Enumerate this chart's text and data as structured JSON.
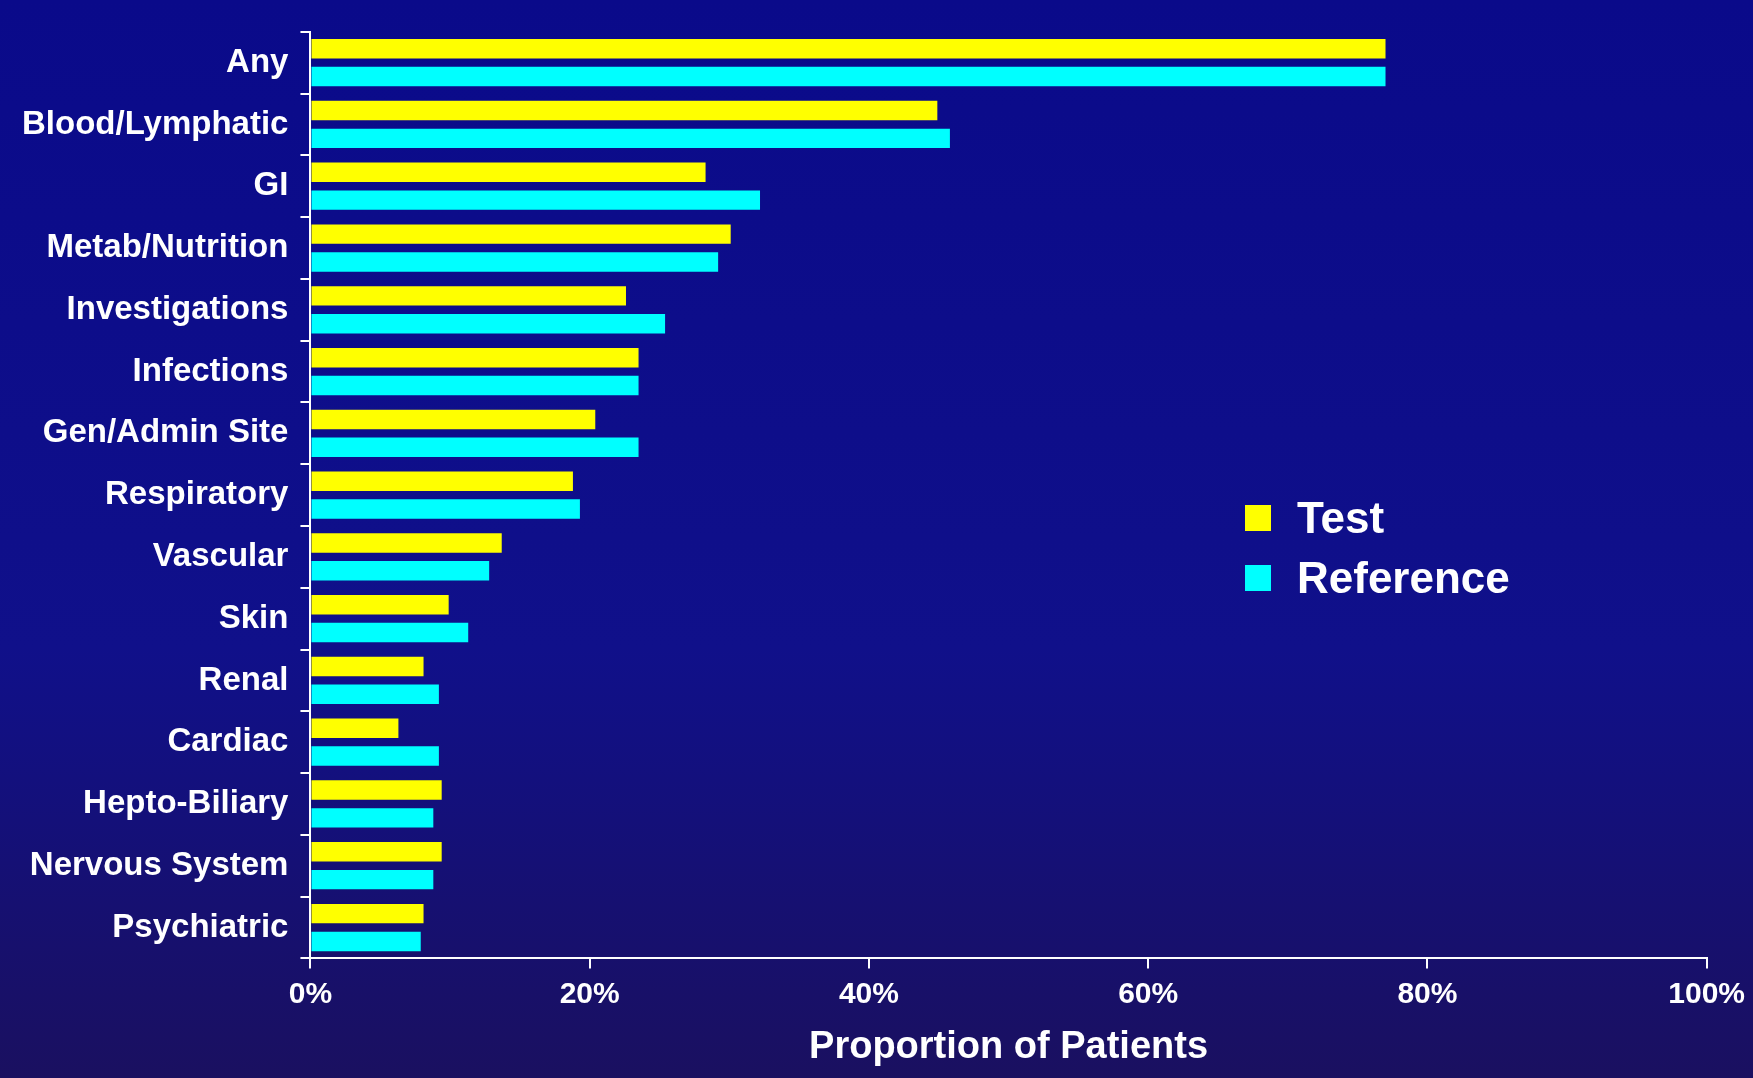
{
  "chart_data": {
    "type": "bar",
    "orientation": "horizontal",
    "xlabel": "Proportion of Patients",
    "categories": [
      "Any",
      "Blood/Lymphatic",
      "GI",
      "Metab/Nutrition",
      "Investigations",
      "Infections",
      "Gen/Admin Site",
      "Respiratory",
      "Vascular",
      "Skin",
      "Renal",
      "Cardiac",
      "Hepto-Biliary",
      "Nervous System",
      "Psychiatric"
    ],
    "series": [
      {
        "name": "Test",
        "color": "#ffff00",
        "values": [
          77,
          44.9,
          28.3,
          30.1,
          22.6,
          23.5,
          20.4,
          18.8,
          13.7,
          9.9,
          8.1,
          6.3,
          9.4,
          9.4,
          8.1
        ]
      },
      {
        "name": "Reference",
        "color": "#00ffff",
        "values": [
          77,
          45.8,
          32.2,
          29.2,
          25.4,
          23.5,
          23.5,
          19.3,
          12.8,
          11.3,
          9.2,
          9.2,
          8.8,
          8.8,
          7.9
        ]
      }
    ],
    "xlim": [
      0,
      100
    ],
    "xticks": [
      {
        "value": 0,
        "label": "0%"
      },
      {
        "value": 20,
        "label": "20%"
      },
      {
        "value": 40,
        "label": "40%"
      },
      {
        "value": 60,
        "label": "60%"
      },
      {
        "value": 80,
        "label": "80%"
      },
      {
        "value": 100,
        "label": "100%"
      }
    ],
    "grid": false,
    "legend": "right"
  }
}
